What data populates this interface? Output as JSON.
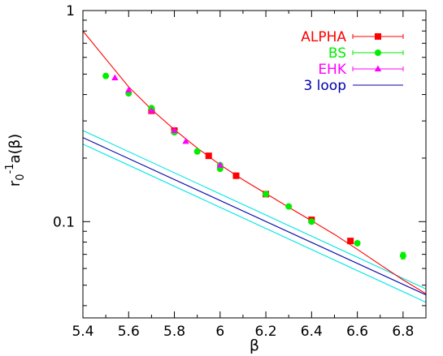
{
  "chart_data": {
    "type": "scatter",
    "xlabel": "β",
    "ylabel_parts": {
      "base": "r",
      "sub": "0",
      "sup": "-1",
      "rest": "a(β)"
    },
    "xlim": [
      5.4,
      6.9
    ],
    "ylim": [
      0.035,
      1.0
    ],
    "yscale": "log",
    "x_ticks": [
      5.4,
      5.6,
      5.8,
      6.0,
      6.2,
      6.4,
      6.6,
      6.8
    ],
    "x_tick_labels": [
      "5.4",
      "5.6",
      "5.8",
      "6",
      "6.2",
      "6.4",
      "6.6",
      "6.8"
    ],
    "y_ticks": [
      0.1,
      1.0
    ],
    "y_tick_labels": [
      "0.1",
      "1"
    ],
    "grid": false,
    "legend_position": "top-right",
    "series": [
      {
        "name": "ALPHA",
        "kind": "points",
        "marker": "square",
        "color": "#ff0000",
        "x": [
          5.7,
          5.8,
          5.95,
          6.07,
          6.2,
          6.4,
          6.57
        ],
        "y": [
          0.335,
          0.27,
          0.205,
          0.165,
          0.135,
          0.102,
          0.081
        ]
      },
      {
        "name": "BS",
        "kind": "points",
        "marker": "circle",
        "color": "#00ee00",
        "x": [
          5.5,
          5.6,
          5.7,
          5.8,
          5.9,
          6.0,
          6.0,
          6.2,
          6.3,
          6.4,
          6.6,
          6.8
        ],
        "y": [
          0.49,
          0.405,
          0.345,
          0.265,
          0.215,
          0.185,
          0.178,
          0.135,
          0.118,
          0.1,
          0.079,
          0.069
        ],
        "yerr": [
          0,
          0,
          0,
          0,
          0,
          0,
          0,
          0,
          0,
          0,
          0,
          0.0025
        ]
      },
      {
        "name": "EHK",
        "kind": "points",
        "marker": "triangle",
        "color": "#ff00ff",
        "x": [
          5.54,
          5.6,
          5.7,
          5.8,
          5.85,
          6.0
        ],
        "y": [
          0.48,
          0.42,
          0.335,
          0.27,
          0.24,
          0.185
        ]
      },
      {
        "name": "3 loop",
        "kind": "line",
        "color": "#0000aa",
        "x": [
          5.4,
          6.9
        ],
        "y": [
          0.25,
          0.045
        ]
      },
      {
        "name": "",
        "kind": "line",
        "color": "#00e5e5",
        "x": [
          5.4,
          6.9
        ],
        "y": [
          0.27,
          0.048
        ]
      },
      {
        "name": "",
        "kind": "line",
        "color": "#00e5e5",
        "x": [
          5.4,
          6.9
        ],
        "y": [
          0.233,
          0.0415
        ]
      },
      {
        "name": "",
        "kind": "line",
        "color": "#ff0000",
        "x": [
          5.4,
          5.5,
          5.6,
          5.7,
          5.8,
          5.9,
          6.0,
          6.1,
          6.2,
          6.3,
          6.4,
          6.5,
          6.6,
          6.7,
          6.8,
          6.9
        ],
        "y": [
          0.8,
          0.59,
          0.435,
          0.34,
          0.273,
          0.223,
          0.186,
          0.158,
          0.136,
          0.117,
          0.101,
          0.087,
          0.074,
          0.0625,
          0.053,
          0.0455
        ]
      }
    ]
  }
}
